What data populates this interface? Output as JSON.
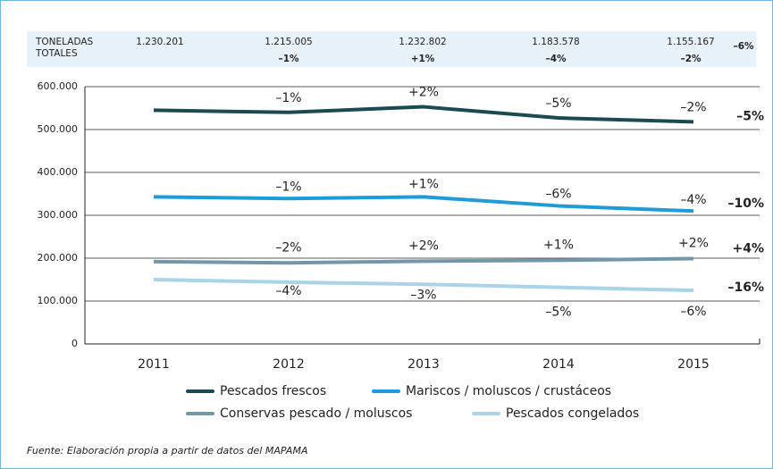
{
  "chart_data": {
    "type": "line",
    "categories": [
      "2011",
      "2012",
      "2013",
      "2014",
      "2015"
    ],
    "ylim": [
      0,
      600000
    ],
    "yticks": [
      0,
      {
        "value": 100000,
        "label": "100.000"
      },
      {
        "value": 200000,
        "label": "200.000"
      },
      {
        "value": 300000,
        "label": "300.000"
      },
      {
        "value": 400000,
        "label": "400.000"
      },
      {
        "value": 500000,
        "label": "500.000"
      },
      {
        "value": 600000,
        "label": "600.000"
      }
    ],
    "grid": true,
    "series": [
      {
        "name": "Pescados frescos",
        "color": "#1b4a52",
        "values": [
          545000,
          540000,
          553000,
          527000,
          518000
        ],
        "changes": [
          null,
          "–1%",
          "+2%",
          "–5%",
          "–2%"
        ],
        "total_change": "–5%"
      },
      {
        "name": "Mariscos / moluscos / crustáceos",
        "color": "#1f9bd7",
        "values": [
          343000,
          339000,
          343000,
          322000,
          310000
        ],
        "changes": [
          null,
          "–1%",
          "+1%",
          "–6%",
          "–4%"
        ],
        "total_change": "–10%"
      },
      {
        "name": "Conservas pescado / moluscos",
        "color": "#7197a8",
        "values": [
          192000,
          189000,
          193000,
          195000,
          199000
        ],
        "changes": [
          null,
          "–2%",
          "+2%",
          "+1%",
          "+2%"
        ],
        "total_change": "+4%"
      },
      {
        "name": "Pescados congelados",
        "color": "#a9d4e9",
        "values": [
          150000,
          144000,
          139000,
          132000,
          125000
        ],
        "changes": [
          null,
          "–4%",
          "–3%",
          "–5%",
          "–6%"
        ],
        "total_change": "–16%"
      }
    ],
    "totals": {
      "label_lines": [
        "TONELADAS",
        "TOTALES"
      ],
      "values": [
        1230201,
        1215005,
        1232802,
        1183578,
        1155167
      ],
      "value_labels": [
        "1.230.201",
        "1.215.005",
        "1.232.802",
        "1.183.578",
        "1.155.167"
      ],
      "changes": [
        null,
        "–1%",
        "+1%",
        "–4%",
        "–2%"
      ],
      "total_change": "–6%"
    },
    "source": "Fuente: Elaboración propia a partir de datos del MAPAMA"
  }
}
